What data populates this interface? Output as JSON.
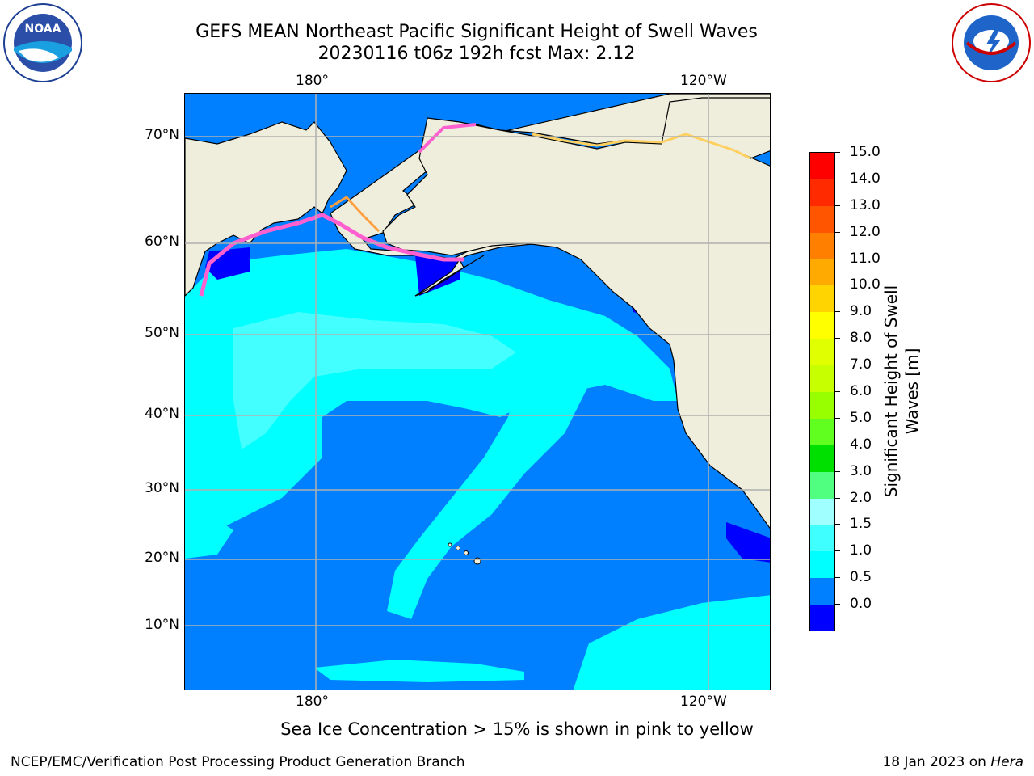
{
  "title": {
    "line1": "GEFS MEAN Northeast Pacific Significant Height of Swell Waves",
    "line2": "20230116 t06z 192h fcst   Max: 2.12"
  },
  "map": {
    "lon_labels_top": [
      "180°",
      "120°W"
    ],
    "lon_labels_bottom": [
      "180°",
      "120°W"
    ],
    "lat_labels": [
      "70°N",
      "60°N",
      "50°N",
      "40°N",
      "30°N",
      "20°N",
      "10°N"
    ],
    "land_color": "#efeedd",
    "ocean_colors": {
      "0.0-0.5": "#0000ff",
      "0.5-1.0": "#0080ff",
      "1.0-1.5": "#00ffff",
      "1.5-2.0": "#44ffff"
    },
    "ice_colors": [
      "#ff60d0",
      "#ffa040",
      "#ffd060"
    ]
  },
  "colorbar": {
    "title": "Significant Height of Swell Waves [m]",
    "labels": [
      "15.0",
      "14.0",
      "13.0",
      "12.0",
      "11.0",
      "10.0",
      "9.0",
      "8.0",
      "7.0",
      "6.0",
      "5.0",
      "4.0",
      "3.0",
      "2.0",
      "1.5",
      "1.0",
      "0.5",
      "0.0"
    ],
    "colors_top_to_bottom": [
      "#ff0000",
      "#ff2a00",
      "#ff5500",
      "#ff8000",
      "#ffaa00",
      "#ffd400",
      "#ffff00",
      "#e0ff00",
      "#c8ff00",
      "#98ff00",
      "#60ff20",
      "#00e000",
      "#50ff80",
      "#a0ffff",
      "#40ffff",
      "#00ffff",
      "#0080ff",
      "#0000ff"
    ]
  },
  "footer": {
    "note": "Sea Ice Concentration > 15% is shown in pink to yellow",
    "credit": "NCEP/EMC/Verification Post Processing Product Generation Branch",
    "date_prefix": "18 Jan 2023 on ",
    "date_host": "Hera"
  },
  "logos": {
    "noaa_text": "NOAA",
    "noaa_ring_text": "NATIONAL OCEANIC AND ATMOSPHERIC ADMINISTRATION · U.S. DEPARTMENT OF COMMERCE",
    "nws_ring_text": "NATIONAL WEATHER SERVICE"
  }
}
